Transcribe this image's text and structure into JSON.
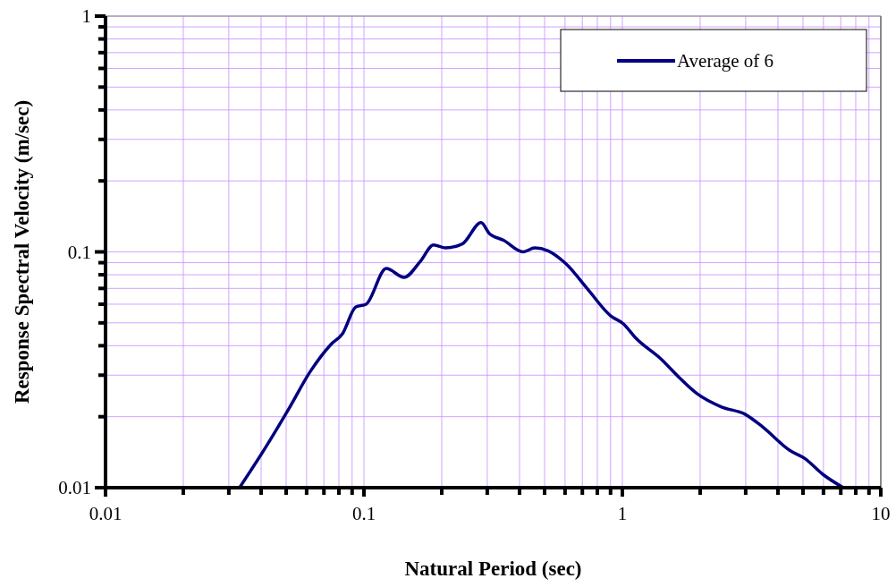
{
  "chart_data": {
    "type": "line",
    "xlabel": "Natural Period (sec)",
    "ylabel": "Response Spectral Velocity (m/sec)",
    "log": "xy",
    "xlim": [
      0.01,
      10
    ],
    "ylim": [
      0.01,
      1
    ],
    "xticks": [
      0.01,
      0.1,
      1,
      10
    ],
    "yticks": [
      0.01,
      0.1,
      1
    ],
    "grid": true,
    "legend": "top right",
    "marker": "none",
    "line_style": "solid",
    "series": [
      {
        "name": "Average of 6",
        "color": "#000080",
        "x": [
          0.033,
          0.0416,
          0.0512,
          0.062,
          0.0745,
          0.0826,
          0.093,
          0.102,
          0.122,
          0.143,
          0.165,
          0.186,
          0.207,
          0.24,
          0.284,
          0.305,
          0.347,
          0.413,
          0.458,
          0.516,
          0.605,
          0.733,
          0.902,
          1.01,
          1.12,
          1.42,
          1.66,
          1.95,
          2.42,
          2.98,
          3.49,
          4.44,
          5.08,
          5.96,
          7.16
        ],
        "values": [
          0.01,
          0.0148,
          0.0216,
          0.0311,
          0.0405,
          0.045,
          0.0584,
          0.06,
          0.085,
          0.078,
          0.091,
          0.107,
          0.104,
          0.108,
          0.133,
          0.12,
          0.112,
          0.1,
          0.104,
          0.101,
          0.089,
          0.0696,
          0.0535,
          0.0495,
          0.0434,
          0.0349,
          0.0293,
          0.025,
          0.022,
          0.0205,
          0.0181,
          0.0144,
          0.0133,
          0.0114,
          0.01
        ]
      }
    ]
  }
}
